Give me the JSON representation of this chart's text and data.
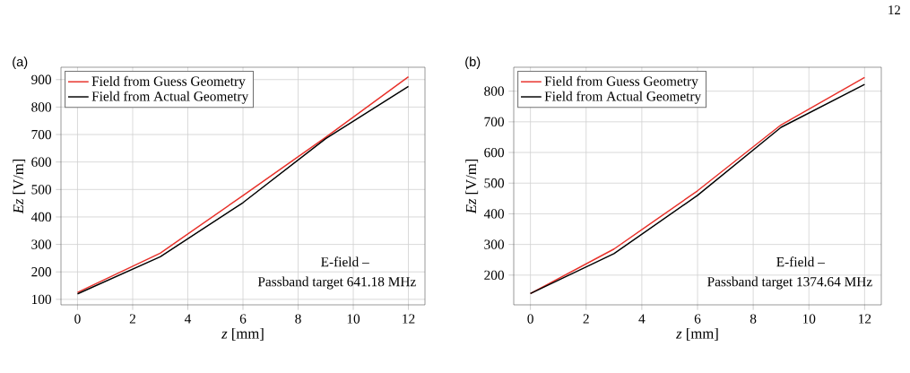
{
  "chart_data": [
    {
      "type": "line",
      "x": [
        0,
        3,
        6,
        9,
        12
      ],
      "xlabel": "*z* [mm]",
      "ylabel": "*Ez* [V/m]",
      "series": [
        {
          "name": "Field from Guess Geometry",
          "color": "#e8312a",
          "values": [
            125,
            268,
            478,
            690,
            910
          ]
        },
        {
          "name": "Field from Actual Geometry",
          "color": "#000000",
          "values": [
            120,
            255,
            452,
            685,
            875
          ]
        }
      ],
      "xlim": [
        -0.6,
        12.6
      ],
      "ylim": [
        80,
        945
      ],
      "xticks": [
        0,
        2,
        4,
        6,
        8,
        10,
        12
      ],
      "yticks": [
        100,
        200,
        300,
        400,
        500,
        600,
        700,
        800,
        900
      ],
      "grid": true,
      "legend": "top left",
      "line_style": "solid",
      "marker": "none",
      "annotations": [
        "(a)",
        "E-field –",
        "Passband target 641.18 MHz"
      ]
    },
    {
      "type": "line",
      "x": [
        0,
        3,
        6,
        9,
        12
      ],
      "xlabel": "*z* [mm]",
      "ylabel": "*Ez* [V/m]",
      "series": [
        {
          "name": "Field from Guess Geometry",
          "color": "#e8312a",
          "values": [
            140,
            285,
            475,
            690,
            845
          ]
        },
        {
          "name": "Field from Actual Geometry",
          "color": "#000000",
          "values": [
            140,
            270,
            460,
            682,
            822
          ]
        }
      ],
      "xlim": [
        -0.6,
        12.6
      ],
      "ylim": [
        103,
        878
      ],
      "xticks": [
        0,
        2,
        4,
        6,
        8,
        10,
        12
      ],
      "yticks": [
        200,
        300,
        400,
        500,
        600,
        700,
        800
      ],
      "grid": true,
      "legend": "top left",
      "line_style": "solid",
      "marker": "none",
      "annotations": [
        "(b)",
        "E-field –",
        "Passband target 1374.64 MHz",
        "12"
      ]
    }
  ]
}
